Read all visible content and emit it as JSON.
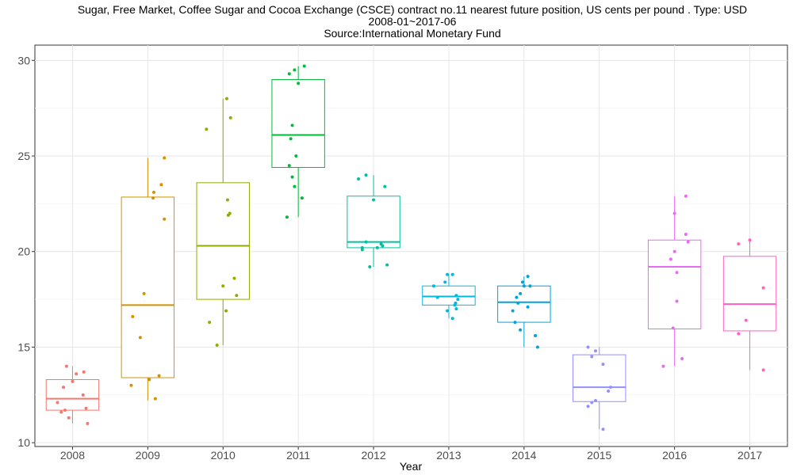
{
  "chart_data": {
    "type": "box",
    "title_lines": [
      "Sugar, Free Market, Coffee Sugar and Cocoa Exchange (CSCE) contract no.11 nearest future position, US cents per pound . Type: USD",
      "2008-01~2017-06",
      "Source:International Monetary Fund"
    ],
    "xlabel": "Year",
    "ylabel": "",
    "ylim": [
      9.8,
      30.8
    ],
    "yticks": [
      10,
      15,
      20,
      25,
      30
    ],
    "grid": true,
    "legend": "none",
    "categories": [
      "2008",
      "2009",
      "2010",
      "2011",
      "2012",
      "2013",
      "2014",
      "2015",
      "2016",
      "2017"
    ],
    "colors": [
      "#F8766D",
      "#D39200",
      "#93AA00",
      "#00BA38",
      "#00C19F",
      "#00B9E3",
      "#00A4DA",
      "#9590FF",
      "#E76BF3",
      "#FF61C3"
    ],
    "boxes": [
      {
        "q1": 11.7,
        "median": 12.3,
        "q3": 13.3,
        "lo": 11.0,
        "hi": 14.0
      },
      {
        "q1": 13.4,
        "median": 17.2,
        "q3": 22.85,
        "lo": 12.2,
        "hi": 24.9
      },
      {
        "q1": 17.5,
        "median": 20.3,
        "q3": 23.6,
        "lo": 15.1,
        "hi": 28.0
      },
      {
        "q1": 24.4,
        "median": 26.1,
        "q3": 29.0,
        "lo": 21.8,
        "hi": 29.7
      },
      {
        "q1": 20.2,
        "median": 20.5,
        "q3": 22.9,
        "lo": 19.2,
        "hi": 24.0
      },
      {
        "q1": 17.2,
        "median": 17.65,
        "q3": 18.2,
        "lo": 16.5,
        "hi": 18.85
      },
      {
        "q1": 16.3,
        "median": 17.35,
        "q3": 18.2,
        "lo": 15.0,
        "hi": 18.7
      },
      {
        "q1": 12.15,
        "median": 12.9,
        "q3": 14.6,
        "lo": 10.7,
        "hi": 15.0
      },
      {
        "q1": 15.95,
        "median": 19.2,
        "q3": 20.6,
        "lo": 14.0,
        "hi": 22.9
      },
      {
        "q1": 15.85,
        "median": 17.25,
        "q3": 19.75,
        "lo": 13.8,
        "hi": 20.6
      }
    ],
    "points": [
      [
        [
          -0.08,
          14.0
        ],
        [
          0.15,
          13.7
        ],
        [
          0.05,
          13.6
        ],
        [
          -0.12,
          12.9
        ],
        [
          0.14,
          12.5
        ],
        [
          -0.2,
          12.1
        ],
        [
          -0.1,
          11.7
        ],
        [
          0.18,
          11.8
        ],
        [
          -0.05,
          11.3
        ],
        [
          0.2,
          11.0
        ],
        [
          -0.15,
          11.6
        ],
        [
          0.0,
          13.2
        ]
      ],
      [
        [
          0.22,
          24.9
        ],
        [
          0.18,
          23.5
        ],
        [
          0.08,
          23.1
        ],
        [
          0.07,
          22.8
        ],
        [
          0.22,
          21.7
        ],
        [
          -0.05,
          17.8
        ],
        [
          -0.2,
          16.6
        ],
        [
          -0.1,
          15.5
        ],
        [
          0.15,
          13.5
        ],
        [
          -0.22,
          13.0
        ],
        [
          0.02,
          13.3
        ],
        [
          0.1,
          12.3
        ]
      ],
      [
        [
          0.05,
          28.0
        ],
        [
          0.1,
          27.0
        ],
        [
          -0.22,
          26.4
        ],
        [
          0.06,
          22.7
        ],
        [
          0.09,
          22.0
        ],
        [
          0.07,
          21.9
        ],
        [
          0.15,
          18.6
        ],
        [
          0.0,
          18.2
        ],
        [
          0.18,
          17.7
        ],
        [
          0.04,
          16.9
        ],
        [
          -0.18,
          16.3
        ],
        [
          -0.08,
          15.1
        ]
      ],
      [
        [
          0.08,
          29.7
        ],
        [
          -0.05,
          29.5
        ],
        [
          -0.12,
          29.3
        ],
        [
          0.0,
          28.8
        ],
        [
          -0.08,
          26.6
        ],
        [
          -0.1,
          25.9
        ],
        [
          -0.03,
          25.0
        ],
        [
          -0.12,
          24.5
        ],
        [
          -0.08,
          23.9
        ],
        [
          -0.05,
          23.4
        ],
        [
          -0.15,
          21.8
        ],
        [
          0.05,
          22.8
        ]
      ],
      [
        [
          -0.1,
          24.0
        ],
        [
          -0.2,
          23.8
        ],
        [
          0.15,
          23.4
        ],
        [
          0.0,
          22.7
        ],
        [
          -0.1,
          20.5
        ],
        [
          0.1,
          20.4
        ],
        [
          -0.15,
          20.1
        ],
        [
          0.05,
          20.2
        ],
        [
          0.12,
          20.3
        ],
        [
          -0.15,
          20.2
        ],
        [
          0.18,
          19.3
        ],
        [
          -0.05,
          19.2
        ]
      ],
      [
        [
          0.05,
          18.8
        ],
        [
          -0.02,
          18.8
        ],
        [
          -0.05,
          18.4
        ],
        [
          -0.2,
          18.2
        ],
        [
          -0.15,
          17.6
        ],
        [
          0.1,
          17.7
        ],
        [
          0.12,
          17.5
        ],
        [
          0.09,
          17.3
        ],
        [
          0.08,
          17.2
        ],
        [
          0.1,
          17.0
        ],
        [
          -0.02,
          16.9
        ],
        [
          0.05,
          16.5
        ]
      ],
      [
        [
          0.05,
          18.7
        ],
        [
          -0.02,
          18.4
        ],
        [
          0.08,
          18.2
        ],
        [
          0.0,
          18.2
        ],
        [
          -0.05,
          17.8
        ],
        [
          -0.1,
          17.6
        ],
        [
          -0.08,
          17.3
        ],
        [
          0.05,
          17.1
        ],
        [
          -0.15,
          16.9
        ],
        [
          -0.12,
          16.3
        ],
        [
          -0.05,
          15.9
        ],
        [
          0.15,
          15.6
        ],
        [
          0.18,
          15.0
        ]
      ],
      [
        [
          -0.15,
          15.0
        ],
        [
          -0.05,
          14.8
        ],
        [
          -0.1,
          14.5
        ],
        [
          0.05,
          14.1
        ],
        [
          0.15,
          12.9
        ],
        [
          0.12,
          12.7
        ],
        [
          -0.05,
          12.2
        ],
        [
          -0.1,
          12.1
        ],
        [
          -0.15,
          11.9
        ],
        [
          0.05,
          10.7
        ]
      ],
      [
        [
          0.15,
          22.9
        ],
        [
          0.0,
          22.0
        ],
        [
          0.15,
          20.9
        ],
        [
          0.18,
          20.5
        ],
        [
          -0.05,
          19.6
        ],
        [
          0.0,
          20.0
        ],
        [
          0.03,
          18.9
        ],
        [
          0.03,
          17.4
        ],
        [
          -0.02,
          16.0
        ],
        [
          -0.15,
          14.0
        ],
        [
          0.1,
          14.4
        ]
      ],
      [
        [
          0.0,
          20.6
        ],
        [
          -0.15,
          20.4
        ],
        [
          0.18,
          18.1
        ],
        [
          -0.05,
          16.4
        ],
        [
          -0.15,
          15.7
        ],
        [
          0.18,
          13.8
        ]
      ]
    ]
  }
}
